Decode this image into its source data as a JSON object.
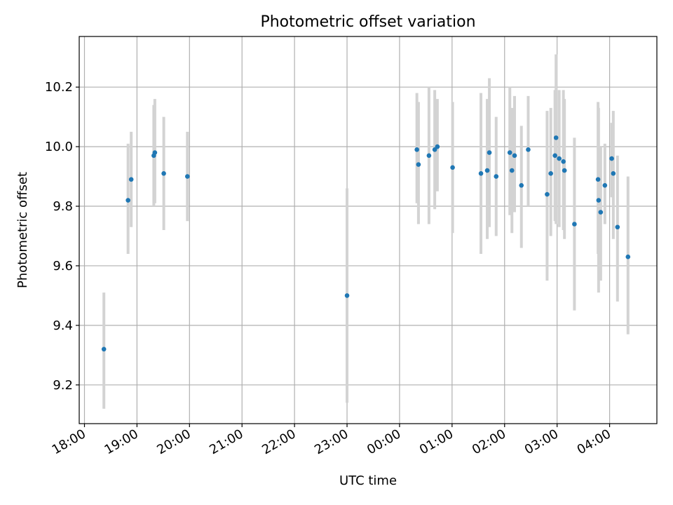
{
  "chart_data": {
    "type": "scatter",
    "title": "Photometric offset variation",
    "xlabel": "UTC time",
    "ylabel": "Photometric offset",
    "xlim": [
      -0.1,
      10.9
    ],
    "ylim": [
      9.07,
      10.37
    ],
    "x_ticks": [
      0,
      1,
      2,
      3,
      4,
      5,
      6,
      7,
      8,
      9,
      10
    ],
    "x_tick_labels": [
      "18:00",
      "19:00",
      "20:00",
      "21:00",
      "22:00",
      "23:00",
      "00:00",
      "01:00",
      "02:00",
      "03:00",
      "04:00"
    ],
    "y_ticks": [
      9.2,
      9.4,
      9.6,
      9.8,
      10.0,
      10.2
    ],
    "y_tick_labels": [
      "9.2",
      "9.4",
      "9.6",
      "9.8",
      "10.0",
      "10.2"
    ],
    "grid": true,
    "x_unit": "hours after 18:00 UTC",
    "series": [
      {
        "name": "Photometric offset",
        "color": "#1f77b4",
        "errorbar_color": "#d3d3d3",
        "points": [
          {
            "x": 0.37,
            "y": 9.32,
            "lo": 9.12,
            "hi": 9.51
          },
          {
            "x": 0.83,
            "y": 9.82,
            "lo": 9.64,
            "hi": 10.01
          },
          {
            "x": 0.89,
            "y": 9.89,
            "lo": 9.73,
            "hi": 10.05
          },
          {
            "x": 1.32,
            "y": 9.97,
            "lo": 9.8,
            "hi": 10.14
          },
          {
            "x": 1.34,
            "y": 9.98,
            "lo": 9.81,
            "hi": 10.16
          },
          {
            "x": 1.51,
            "y": 9.91,
            "lo": 9.72,
            "hi": 10.1
          },
          {
            "x": 1.96,
            "y": 9.9,
            "lo": 9.75,
            "hi": 10.05
          },
          {
            "x": 5.0,
            "y": 9.5,
            "lo": 9.14,
            "hi": 9.86
          },
          {
            "x": 6.33,
            "y": 9.99,
            "lo": 9.81,
            "hi": 10.18
          },
          {
            "x": 6.36,
            "y": 9.94,
            "lo": 9.74,
            "hi": 10.15
          },
          {
            "x": 6.56,
            "y": 9.97,
            "lo": 9.74,
            "hi": 10.2
          },
          {
            "x": 6.67,
            "y": 9.99,
            "lo": 9.79,
            "hi": 10.19
          },
          {
            "x": 6.72,
            "y": 10.0,
            "lo": 9.85,
            "hi": 10.16
          },
          {
            "x": 7.01,
            "y": 9.93,
            "lo": 9.71,
            "hi": 10.15
          },
          {
            "x": 7.55,
            "y": 9.91,
            "lo": 9.64,
            "hi": 10.18
          },
          {
            "x": 7.67,
            "y": 9.92,
            "lo": 9.69,
            "hi": 10.16
          },
          {
            "x": 7.71,
            "y": 9.98,
            "lo": 9.73,
            "hi": 10.23
          },
          {
            "x": 7.84,
            "y": 9.9,
            "lo": 9.7,
            "hi": 10.1
          },
          {
            "x": 8.1,
            "y": 9.98,
            "lo": 9.77,
            "hi": 10.2
          },
          {
            "x": 8.14,
            "y": 9.92,
            "lo": 9.71,
            "hi": 10.13
          },
          {
            "x": 8.19,
            "y": 9.97,
            "lo": 9.78,
            "hi": 10.17
          },
          {
            "x": 8.32,
            "y": 9.87,
            "lo": 9.66,
            "hi": 10.07
          },
          {
            "x": 8.45,
            "y": 9.99,
            "lo": 9.8,
            "hi": 10.17
          },
          {
            "x": 8.81,
            "y": 9.84,
            "lo": 9.55,
            "hi": 10.12
          },
          {
            "x": 8.88,
            "y": 9.91,
            "lo": 9.7,
            "hi": 10.13
          },
          {
            "x": 8.96,
            "y": 9.97,
            "lo": 9.75,
            "hi": 10.19
          },
          {
            "x": 8.98,
            "y": 10.03,
            "lo": 9.74,
            "hi": 10.31
          },
          {
            "x": 9.04,
            "y": 9.96,
            "lo": 9.73,
            "hi": 10.19
          },
          {
            "x": 9.12,
            "y": 9.95,
            "lo": 9.72,
            "hi": 10.19
          },
          {
            "x": 9.14,
            "y": 9.92,
            "lo": 9.69,
            "hi": 10.16
          },
          {
            "x": 9.33,
            "y": 9.74,
            "lo": 9.45,
            "hi": 10.03
          },
          {
            "x": 9.78,
            "y": 9.89,
            "lo": 9.64,
            "hi": 10.15
          },
          {
            "x": 9.79,
            "y": 9.82,
            "lo": 9.51,
            "hi": 10.13
          },
          {
            "x": 9.83,
            "y": 9.78,
            "lo": 9.55,
            "hi": 10.0
          },
          {
            "x": 9.91,
            "y": 9.87,
            "lo": 9.74,
            "hi": 10.01
          },
          {
            "x": 10.04,
            "y": 9.96,
            "lo": 9.83,
            "hi": 10.08
          },
          {
            "x": 10.07,
            "y": 9.91,
            "lo": 9.69,
            "hi": 10.12
          },
          {
            "x": 10.15,
            "y": 9.73,
            "lo": 9.48,
            "hi": 9.97
          },
          {
            "x": 10.35,
            "y": 9.63,
            "lo": 9.37,
            "hi": 9.9
          }
        ]
      }
    ]
  }
}
